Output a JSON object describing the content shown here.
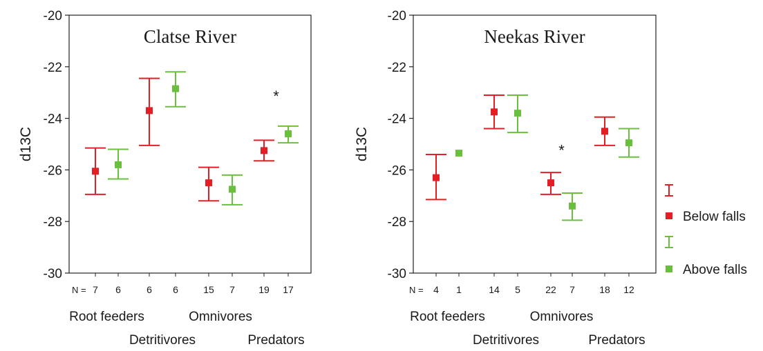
{
  "chart_data": [
    {
      "type": "errorbar",
      "title": "Clatse River",
      "ylabel": "d13C",
      "ylim": [
        -30,
        -20
      ],
      "yticks": [
        -20,
        -22,
        -24,
        -26,
        -28,
        -30
      ],
      "n_label": "N =",
      "groups": [
        {
          "upper": "Root feeders",
          "lower": ""
        },
        {
          "upper": "",
          "lower": "Detritivores"
        },
        {
          "upper": "Omnivores",
          "lower": ""
        },
        {
          "upper": "",
          "lower": "Predators"
        }
      ],
      "series": [
        {
          "name": "Below falls",
          "color": "#e31e24",
          "mean": [
            -26.05,
            -23.7,
            -26.5,
            -25.25
          ],
          "upper": [
            -25.15,
            -22.45,
            -25.9,
            -24.85
          ],
          "lower": [
            -26.95,
            -25.05,
            -27.2,
            -25.65
          ],
          "n": [
            "7",
            "6",
            "15",
            "19"
          ]
        },
        {
          "name": "Above falls",
          "color": "#6abf3c",
          "mean": [
            -25.8,
            -22.85,
            -26.75,
            -24.6
          ],
          "upper": [
            -25.2,
            -22.2,
            -26.2,
            -24.3
          ],
          "lower": [
            -26.35,
            -23.55,
            -27.35,
            -24.95
          ],
          "n": [
            "6",
            "6",
            "7",
            "17"
          ]
        }
      ],
      "annotations": [
        {
          "text": "*",
          "group": 3,
          "y": -23.1
        }
      ]
    },
    {
      "type": "errorbar",
      "title": "Neekas River",
      "ylabel": "d13C",
      "ylim": [
        -30,
        -20
      ],
      "yticks": [
        -20,
        -22,
        -24,
        -26,
        -28,
        -30
      ],
      "n_label": "N =",
      "groups": [
        {
          "upper": "Root feeders",
          "lower": ""
        },
        {
          "upper": "",
          "lower": "Detritivores"
        },
        {
          "upper": "Omnivores",
          "lower": ""
        },
        {
          "upper": "",
          "lower": "Predators"
        }
      ],
      "series": [
        {
          "name": "Below falls",
          "color": "#e31e24",
          "mean": [
            -26.3,
            -23.75,
            -26.5,
            -24.5
          ],
          "upper": [
            -25.4,
            -23.1,
            -26.1,
            -23.95
          ],
          "lower": [
            -27.15,
            -24.4,
            -26.95,
            -25.05
          ],
          "n": [
            "4",
            "14",
            "22",
            "18"
          ]
        },
        {
          "name": "Above falls",
          "color": "#6abf3c",
          "mean": [
            -25.35,
            -23.8,
            -27.4,
            -24.95
          ],
          "upper": [
            null,
            -23.1,
            -26.9,
            -24.4
          ],
          "lower": [
            null,
            -24.55,
            -27.95,
            -25.5
          ],
          "n": [
            "1",
            "5",
            "7",
            "12"
          ]
        }
      ],
      "annotations": [
        {
          "text": "*",
          "group": 2,
          "y": -25.2
        }
      ]
    }
  ],
  "legend": {
    "items": [
      {
        "kind": "bar",
        "color": "#e31e24",
        "label": ""
      },
      {
        "kind": "marker",
        "color": "#e31e24",
        "label": "Below falls"
      },
      {
        "kind": "bar",
        "color": "#6abf3c",
        "label": ""
      },
      {
        "kind": "marker",
        "color": "#6abf3c",
        "label": "Above falls"
      }
    ]
  }
}
